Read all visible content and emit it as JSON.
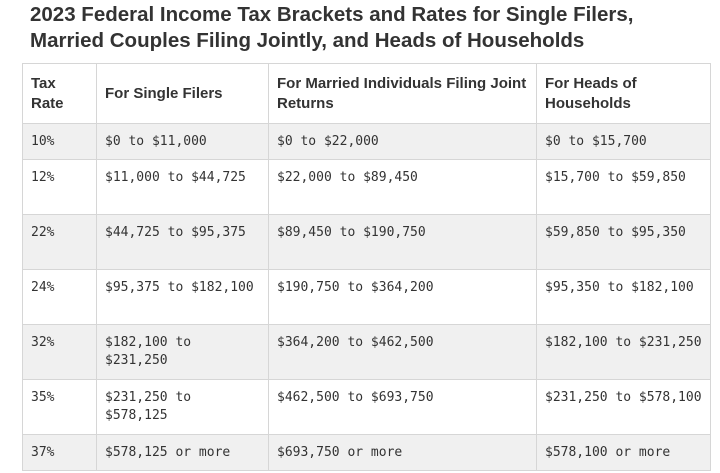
{
  "title": "2023 Federal Income Tax Brackets and Rates for Single Filers, Married Couples Filing Jointly, and Heads of Households",
  "table": {
    "headers": [
      "Tax Rate",
      "For Single Filers",
      "For Married Individuals Filing Joint Returns",
      "For Heads of Households"
    ],
    "rows": [
      [
        "10%",
        "$0 to $11,000",
        "$0 to $22,000",
        "$0 to $15,700"
      ],
      [
        "12%",
        "$11,000 to $44,725",
        "$22,000 to $89,450",
        "$15,700 to $59,850"
      ],
      [
        "22%",
        "$44,725 to $95,375",
        "$89,450 to $190,750",
        "$59,850 to $95,350"
      ],
      [
        "24%",
        "$95,375 to $182,100",
        "$190,750 to $364,200",
        "$95,350 to $182,100"
      ],
      [
        "32%",
        "$182,100 to $231,250",
        "$364,200 to $462,500",
        "$182,100 to $231,250"
      ],
      [
        "35%",
        "$231,250 to $578,125",
        "$462,500 to $693,750",
        "$231,250 to $578,100"
      ],
      [
        "37%",
        "$578,125 or more",
        "$693,750 or more",
        "$578,100 or more"
      ]
    ]
  }
}
